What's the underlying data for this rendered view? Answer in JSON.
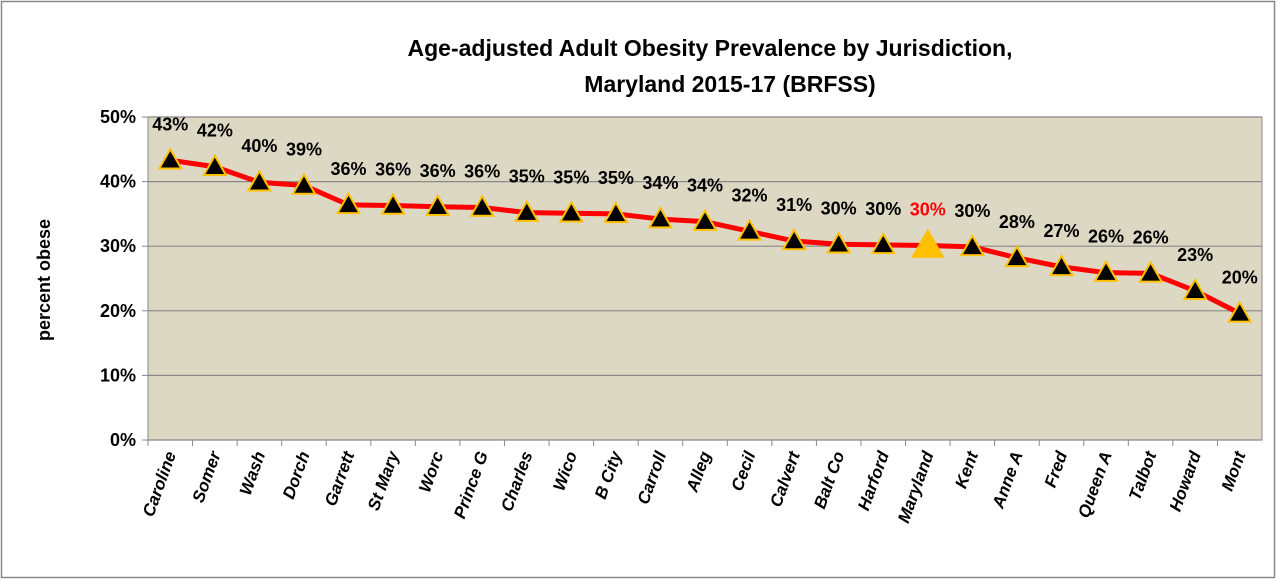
{
  "chart_data": {
    "type": "line",
    "title": [
      "Age-adjusted Adult Obesity Prevalence by Jurisdiction,",
      "Maryland 2015-17 (BRFSS)"
    ],
    "y_label": "percent obese",
    "categories": [
      "Caroline",
      "Somer",
      "Wash",
      "Dorch",
      "Garrett",
      "St Mary",
      "Worc",
      "Prince G",
      "Charles",
      "Wico",
      "B City",
      "Carroll",
      "Alleg",
      "Cecil",
      "Calvert",
      "Balt Co",
      "Harford",
      "Maryland",
      "Kent",
      "Anne A",
      "Fred",
      "Queen A",
      "Talbot",
      "Howard",
      "Mont"
    ],
    "series": [
      {
        "name": "percent obese",
        "color": "#ff0000",
        "marker_color": "#000000",
        "marker_edge": "#ffc000",
        "values": [
          43.3,
          42.3,
          39.9,
          39.4,
          36.4,
          36.3,
          36.1,
          36.0,
          35.2,
          35.1,
          35.0,
          34.2,
          33.8,
          32.3,
          30.8,
          30.3,
          30.2,
          30.1,
          29.9,
          28.2,
          26.8,
          25.9,
          25.8,
          23.1,
          19.6
        ],
        "value_labels": [
          "43%",
          "42%",
          "40%",
          "39%",
          "36%",
          "36%",
          "36%",
          "36%",
          "35%",
          "35%",
          "35%",
          "34%",
          "34%",
          "32%",
          "31%",
          "30%",
          "30%",
          "30%",
          "30%",
          "28%",
          "27%",
          "26%",
          "26%",
          "23%",
          "20%"
        ]
      }
    ],
    "highlight": {
      "category": "Maryland",
      "marker_color": "#ffc000",
      "label_color": "#ff0000"
    },
    "ylim": [
      0,
      50
    ],
    "yticks": [
      {
        "value": 0,
        "label": "0%"
      },
      {
        "value": 10,
        "label": "10%"
      },
      {
        "value": 20,
        "label": "20%"
      },
      {
        "value": 30,
        "label": "30%"
      },
      {
        "value": 40,
        "label": "40%"
      },
      {
        "value": 50,
        "label": "50%"
      }
    ],
    "grid": true,
    "plot_background": "#ddd8c4"
  }
}
